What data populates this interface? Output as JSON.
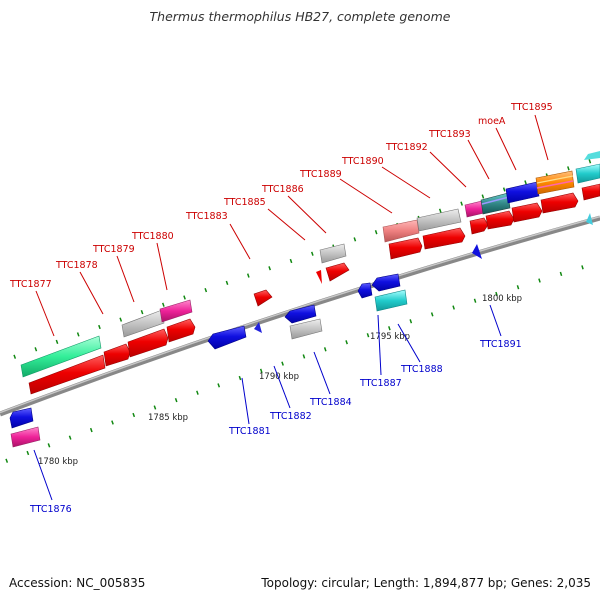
{
  "title": "Thermus thermophilus HB27, complete genome",
  "footer": {
    "accession": "Accession: NC_005835",
    "topology": "Topology: circular; Length: 1,894,877 bp; Genes: 2,035"
  },
  "colors": {
    "label_forward": "#cc0000",
    "label_reverse": "#0000cc",
    "backbone": "#777777",
    "tick": "#118811"
  },
  "scale_labels": [
    "1780 kbp",
    "1785 kbp",
    "1790 kbp",
    "1795 kbp",
    "1800 kbp"
  ],
  "forward_labels": [
    "TTC1877",
    "TTC1878",
    "TTC1879",
    "TTC1880",
    "TTC1883",
    "TTC1885",
    "TTC1886",
    "TTC1889",
    "TTC1890",
    "TTC1892",
    "TTC1893",
    "moeA",
    "TTC1895"
  ],
  "reverse_labels": [
    "TTC1876",
    "TTC1881",
    "TTC1882",
    "TTC1884",
    "TTC1887",
    "TTC1888",
    "TTC1891"
  ]
}
